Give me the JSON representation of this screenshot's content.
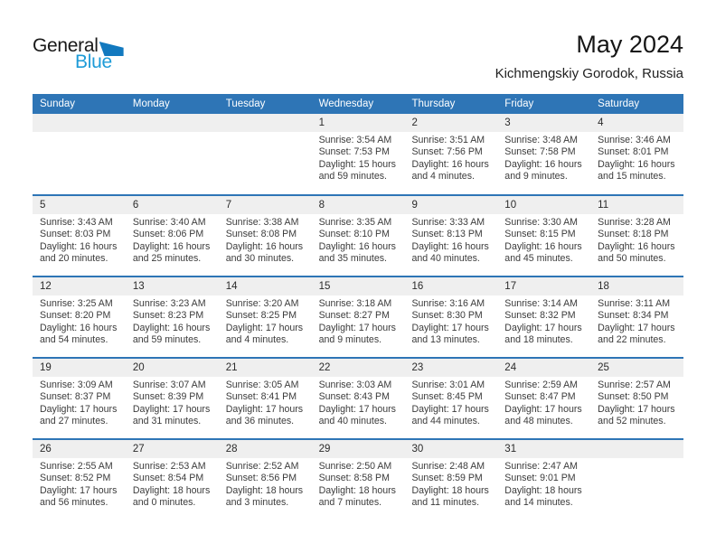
{
  "logo": {
    "part1": "General",
    "part2": "Blue"
  },
  "header": {
    "title": "May 2024",
    "subtitle": "Kichmengskiy Gorodok, Russia"
  },
  "colors": {
    "header_bg": "#2E75B6",
    "row_divider": "#2E75B6",
    "day_band_bg": "#EFEFEF",
    "logo_blue": "#1E9BD7",
    "logo_triangle": "#1279BF",
    "header_text": "#FFFFFF",
    "body_text": "#3B3B3B"
  },
  "labels": {
    "sunrise": "Sunrise:",
    "sunset": "Sunset:",
    "daylight": "Daylight:"
  },
  "weekdays": [
    "Sunday",
    "Monday",
    "Tuesday",
    "Wednesday",
    "Thursday",
    "Friday",
    "Saturday"
  ],
  "weeks": [
    [
      null,
      null,
      null,
      {
        "day": 1,
        "sunrise": "3:54 AM",
        "sunset": "7:53 PM",
        "daylight": "15 hours and 59 minutes."
      },
      {
        "day": 2,
        "sunrise": "3:51 AM",
        "sunset": "7:56 PM",
        "daylight": "16 hours and 4 minutes."
      },
      {
        "day": 3,
        "sunrise": "3:48 AM",
        "sunset": "7:58 PM",
        "daylight": "16 hours and 9 minutes."
      },
      {
        "day": 4,
        "sunrise": "3:46 AM",
        "sunset": "8:01 PM",
        "daylight": "16 hours and 15 minutes."
      }
    ],
    [
      {
        "day": 5,
        "sunrise": "3:43 AM",
        "sunset": "8:03 PM",
        "daylight": "16 hours and 20 minutes."
      },
      {
        "day": 6,
        "sunrise": "3:40 AM",
        "sunset": "8:06 PM",
        "daylight": "16 hours and 25 minutes."
      },
      {
        "day": 7,
        "sunrise": "3:38 AM",
        "sunset": "8:08 PM",
        "daylight": "16 hours and 30 minutes."
      },
      {
        "day": 8,
        "sunrise": "3:35 AM",
        "sunset": "8:10 PM",
        "daylight": "16 hours and 35 minutes."
      },
      {
        "day": 9,
        "sunrise": "3:33 AM",
        "sunset": "8:13 PM",
        "daylight": "16 hours and 40 minutes."
      },
      {
        "day": 10,
        "sunrise": "3:30 AM",
        "sunset": "8:15 PM",
        "daylight": "16 hours and 45 minutes."
      },
      {
        "day": 11,
        "sunrise": "3:28 AM",
        "sunset": "8:18 PM",
        "daylight": "16 hours and 50 minutes."
      }
    ],
    [
      {
        "day": 12,
        "sunrise": "3:25 AM",
        "sunset": "8:20 PM",
        "daylight": "16 hours and 54 minutes."
      },
      {
        "day": 13,
        "sunrise": "3:23 AM",
        "sunset": "8:23 PM",
        "daylight": "16 hours and 59 minutes."
      },
      {
        "day": 14,
        "sunrise": "3:20 AM",
        "sunset": "8:25 PM",
        "daylight": "17 hours and 4 minutes."
      },
      {
        "day": 15,
        "sunrise": "3:18 AM",
        "sunset": "8:27 PM",
        "daylight": "17 hours and 9 minutes."
      },
      {
        "day": 16,
        "sunrise": "3:16 AM",
        "sunset": "8:30 PM",
        "daylight": "17 hours and 13 minutes."
      },
      {
        "day": 17,
        "sunrise": "3:14 AM",
        "sunset": "8:32 PM",
        "daylight": "17 hours and 18 minutes."
      },
      {
        "day": 18,
        "sunrise": "3:11 AM",
        "sunset": "8:34 PM",
        "daylight": "17 hours and 22 minutes."
      }
    ],
    [
      {
        "day": 19,
        "sunrise": "3:09 AM",
        "sunset": "8:37 PM",
        "daylight": "17 hours and 27 minutes."
      },
      {
        "day": 20,
        "sunrise": "3:07 AM",
        "sunset": "8:39 PM",
        "daylight": "17 hours and 31 minutes."
      },
      {
        "day": 21,
        "sunrise": "3:05 AM",
        "sunset": "8:41 PM",
        "daylight": "17 hours and 36 minutes."
      },
      {
        "day": 22,
        "sunrise": "3:03 AM",
        "sunset": "8:43 PM",
        "daylight": "17 hours and 40 minutes."
      },
      {
        "day": 23,
        "sunrise": "3:01 AM",
        "sunset": "8:45 PM",
        "daylight": "17 hours and 44 minutes."
      },
      {
        "day": 24,
        "sunrise": "2:59 AM",
        "sunset": "8:47 PM",
        "daylight": "17 hours and 48 minutes."
      },
      {
        "day": 25,
        "sunrise": "2:57 AM",
        "sunset": "8:50 PM",
        "daylight": "17 hours and 52 minutes."
      }
    ],
    [
      {
        "day": 26,
        "sunrise": "2:55 AM",
        "sunset": "8:52 PM",
        "daylight": "17 hours and 56 minutes."
      },
      {
        "day": 27,
        "sunrise": "2:53 AM",
        "sunset": "8:54 PM",
        "daylight": "18 hours and 0 minutes."
      },
      {
        "day": 28,
        "sunrise": "2:52 AM",
        "sunset": "8:56 PM",
        "daylight": "18 hours and 3 minutes."
      },
      {
        "day": 29,
        "sunrise": "2:50 AM",
        "sunset": "8:58 PM",
        "daylight": "18 hours and 7 minutes."
      },
      {
        "day": 30,
        "sunrise": "2:48 AM",
        "sunset": "8:59 PM",
        "daylight": "18 hours and 11 minutes."
      },
      {
        "day": 31,
        "sunrise": "2:47 AM",
        "sunset": "9:01 PM",
        "daylight": "18 hours and 14 minutes."
      },
      null
    ]
  ]
}
